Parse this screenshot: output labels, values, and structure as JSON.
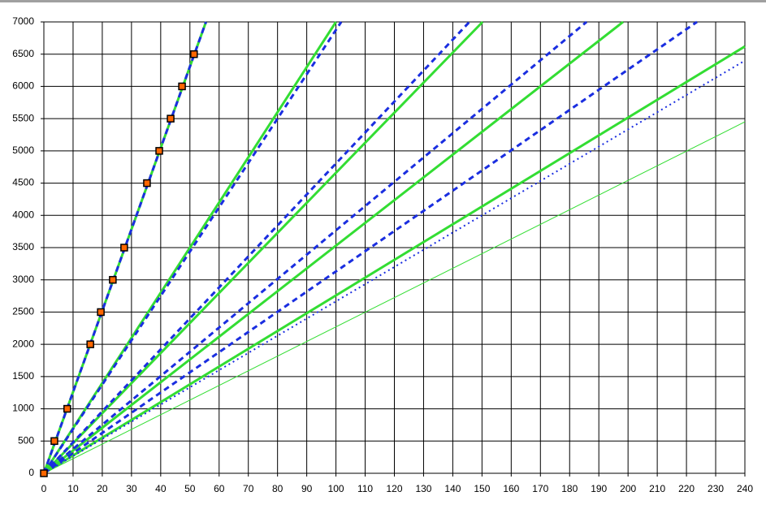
{
  "chart_data": {
    "type": "line",
    "xlim": [
      0,
      240
    ],
    "ylim": [
      0,
      7000
    ],
    "xticks": [
      0,
      10,
      20,
      30,
      40,
      50,
      60,
      70,
      80,
      90,
      100,
      110,
      120,
      130,
      140,
      150,
      160,
      170,
      180,
      190,
      200,
      210,
      220,
      230,
      240
    ],
    "yticks": [
      0,
      500,
      1000,
      1500,
      2000,
      2500,
      3000,
      3500,
      4000,
      4500,
      5000,
      5500,
      6000,
      6500,
      7000
    ],
    "grid": true,
    "series": [
      {
        "color": "#33dd33",
        "style": "solid",
        "width": 3,
        "x": [
          0,
          55.5
        ],
        "values": [
          0,
          7000
        ]
      },
      {
        "color": "#33dd33",
        "style": "solid",
        "width": 3,
        "x": [
          0,
          100
        ],
        "values": [
          0,
          7000
        ]
      },
      {
        "color": "#33dd33",
        "style": "solid",
        "width": 3,
        "x": [
          0,
          150.2
        ],
        "values": [
          0,
          7000
        ]
      },
      {
        "color": "#33dd33",
        "style": "solid",
        "width": 3,
        "x": [
          0,
          198.3
        ],
        "values": [
          0,
          7000
        ]
      },
      {
        "color": "#33dd33",
        "style": "solid",
        "width": 3,
        "x": [
          0,
          240
        ],
        "values": [
          0,
          6620
        ]
      },
      {
        "color": "#33dd33",
        "style": "solid",
        "width": 1,
        "x": [
          0,
          240
        ],
        "values": [
          0,
          5450
        ]
      },
      {
        "color": "#1a2ee0",
        "style": "dashed",
        "width": 3,
        "x": [
          0,
          55.5
        ],
        "values": [
          0,
          7000
        ]
      },
      {
        "color": "#1a2ee0",
        "style": "dashed",
        "width": 3,
        "x": [
          0,
          101.8
        ],
        "values": [
          0,
          7000
        ]
      },
      {
        "color": "#1a2ee0",
        "style": "dashed",
        "width": 3,
        "x": [
          0,
          145.7
        ],
        "values": [
          0,
          7000
        ]
      },
      {
        "color": "#1a2ee0",
        "style": "dashed",
        "width": 3,
        "x": [
          0,
          185.8
        ],
        "values": [
          0,
          7000
        ]
      },
      {
        "color": "#1a2ee0",
        "style": "dashed",
        "width": 3,
        "x": [
          0,
          223.6
        ],
        "values": [
          0,
          7000
        ]
      },
      {
        "color": "#1a2ee0",
        "style": "dotted",
        "width": 2,
        "x": [
          0,
          240
        ],
        "values": [
          0,
          6400
        ]
      },
      {
        "color": "#ff6600",
        "style": "marker",
        "width": 1,
        "x": [
          0,
          3.6,
          8,
          15.9,
          19.5,
          23.6,
          27.5,
          35.3,
          39.5,
          43.4,
          47.3,
          51.4
        ],
        "values": [
          0,
          500,
          1000,
          2000,
          2500,
          3000,
          3500,
          4500,
          5000,
          5500,
          6000,
          6500
        ]
      }
    ]
  }
}
